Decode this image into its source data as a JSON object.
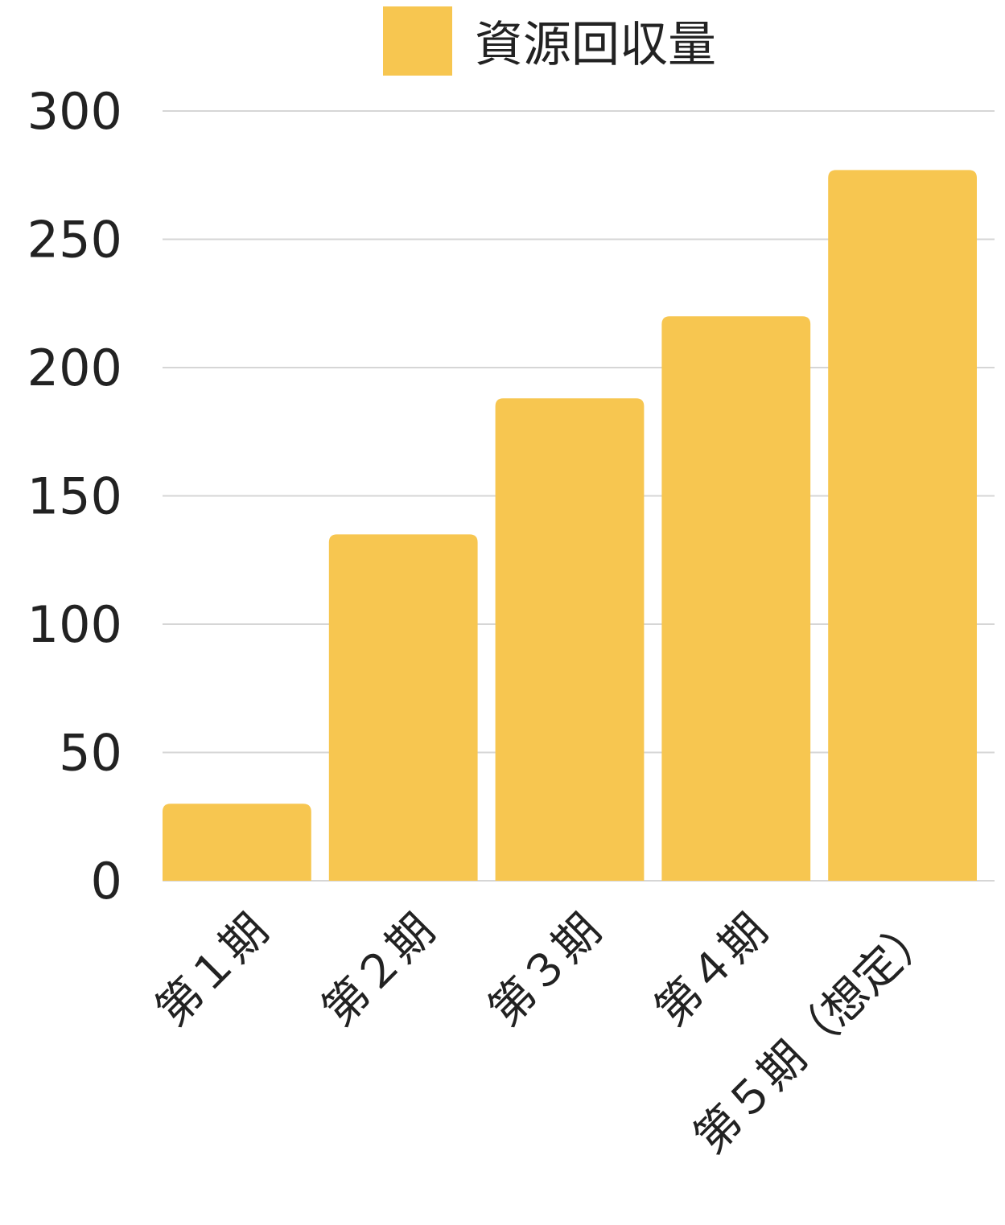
{
  "chart_data": {
    "type": "bar",
    "categories": [
      "第１期",
      "第２期",
      "第３期",
      "第４期",
      "第５期（想定）"
    ],
    "series": [
      {
        "name": "資源回収量",
        "values": [
          30,
          135,
          188,
          220,
          277
        ],
        "color": "#F7C650"
      }
    ],
    "title": "",
    "xlabel": "",
    "ylabel": "",
    "ylim": [
      0,
      300
    ],
    "yticks": [
      0,
      50,
      100,
      150,
      200,
      250,
      300
    ],
    "grid": true,
    "legend": "top-center"
  }
}
